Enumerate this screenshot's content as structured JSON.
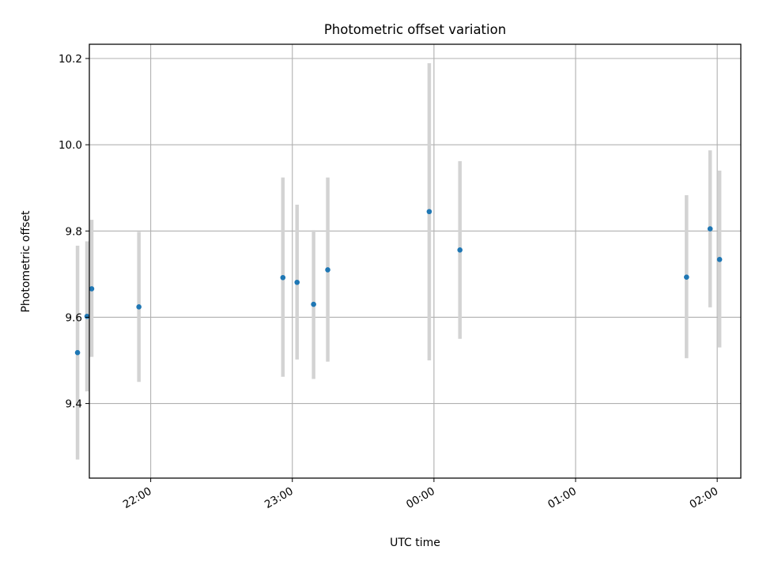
{
  "chart_data": {
    "type": "scatter",
    "title": "Photometric offset variation",
    "xlabel": "UTC time",
    "ylabel": "Photometric offset",
    "x_unit": "time of night (hh:mm UTC)",
    "xlim": [
      "21:34",
      "02:10"
    ],
    "ylim": [
      9.227,
      10.233
    ],
    "grid": true,
    "x_ticks": [
      "22:00",
      "23:00",
      "00:00",
      "01:00",
      "02:00"
    ],
    "y_ticks": [
      "9.4",
      "9.6",
      "9.8",
      "10.0",
      "10.2"
    ],
    "colors": {
      "point": "#1f77b4",
      "errorbar": "#d3d3d3",
      "grid": "#b0b0b0"
    },
    "series": [
      {
        "points": [
          {
            "time": "21:29",
            "y": 9.518,
            "err_low": 9.27,
            "err_high": 9.766
          },
          {
            "time": "21:33",
            "y": 9.602,
            "err_low": 9.428,
            "err_high": 9.776
          },
          {
            "time": "21:35",
            "y": 9.666,
            "err_low": 9.508,
            "err_high": 9.826
          },
          {
            "time": "21:55",
            "y": 9.624,
            "err_low": 9.45,
            "err_high": 9.798
          },
          {
            "time": "22:56",
            "y": 9.692,
            "err_low": 9.462,
            "err_high": 9.924
          },
          {
            "time": "23:02",
            "y": 9.681,
            "err_low": 9.502,
            "err_high": 9.861
          },
          {
            "time": "23:09",
            "y": 9.63,
            "err_low": 9.457,
            "err_high": 9.802
          },
          {
            "time": "23:15",
            "y": 9.71,
            "err_low": 9.497,
            "err_high": 9.924
          },
          {
            "time": "23:58",
            "y": 9.845,
            "err_low": 9.5,
            "err_high": 10.189
          },
          {
            "time": "00:11",
            "y": 9.756,
            "err_low": 9.55,
            "err_high": 9.962
          },
          {
            "time": "01:47",
            "y": 9.693,
            "err_low": 9.505,
            "err_high": 9.883
          },
          {
            "time": "01:57",
            "y": 9.805,
            "err_low": 9.623,
            "err_high": 9.987
          },
          {
            "time": "02:01",
            "y": 9.734,
            "err_low": 9.53,
            "err_high": 9.94
          }
        ]
      }
    ]
  }
}
